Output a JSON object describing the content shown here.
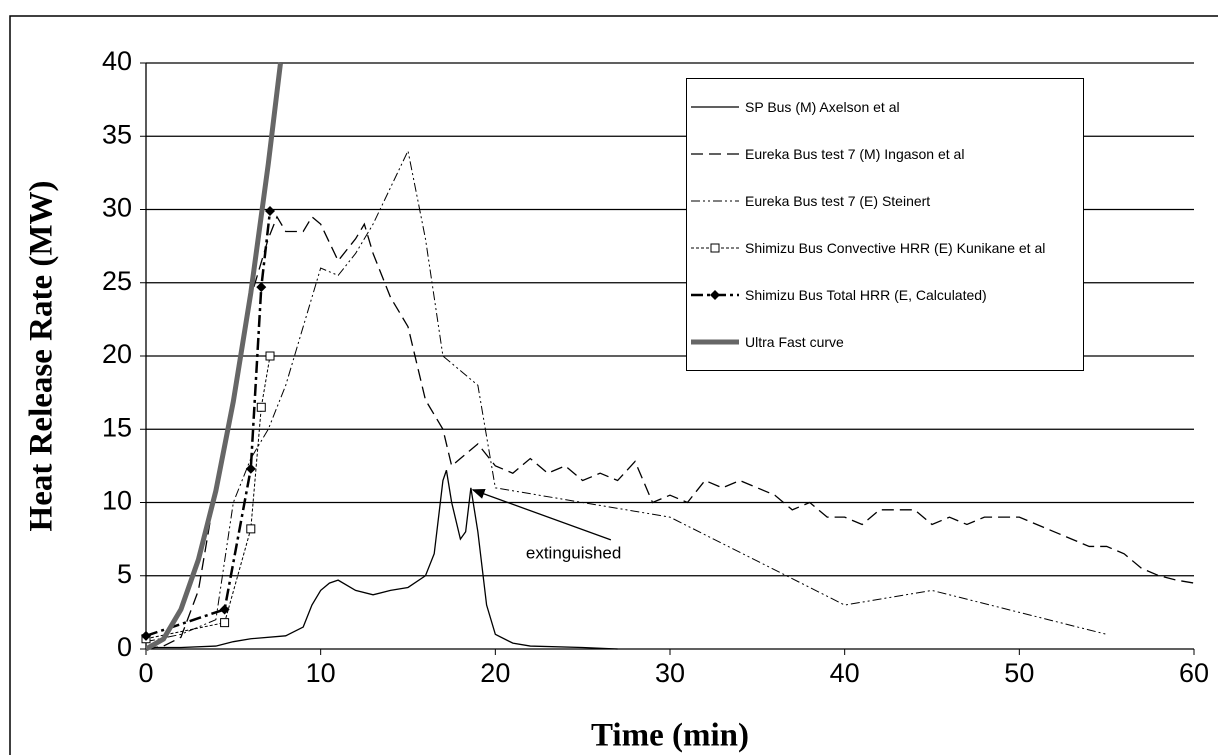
{
  "chart_data": {
    "type": "line",
    "xlabel": "Time (min)",
    "ylabel": "Heat Release Rate (MW)",
    "xlim": [
      0,
      60
    ],
    "xticks": [
      0,
      10,
      20,
      30,
      40,
      50,
      60
    ],
    "ylim": [
      0,
      40
    ],
    "yticks": [
      0,
      5,
      10,
      15,
      20,
      25,
      30,
      35,
      40
    ],
    "grid": true,
    "legend": "upper right",
    "annotation": {
      "text": "extinguished",
      "x": 18.6,
      "y": 11
    },
    "series": [
      {
        "name": "SP Bus (M) Axelson et al",
        "color": "#000000",
        "line_style": "solid",
        "width": 1.3,
        "marker": "none",
        "x": [
          0,
          2,
          4,
          5,
          6,
          8,
          9,
          9.5,
          10,
          10.5,
          11,
          12,
          13,
          14,
          15,
          16,
          16.5,
          17,
          17.2,
          17.5,
          18,
          18.3,
          18.6,
          19,
          19.5,
          20,
          21,
          22,
          25,
          27
        ],
        "values": [
          0.1,
          0.1,
          0.2,
          0.5,
          0.7,
          0.9,
          1.5,
          3,
          4,
          4.5,
          4.7,
          4,
          3.7,
          4,
          4.2,
          5,
          6.5,
          11.5,
          12.2,
          10,
          7.5,
          8,
          11,
          8,
          3,
          1,
          0.4,
          0.2,
          0.1,
          0
        ]
      },
      {
        "name": "Eureka Bus test 7 (M) Ingason et al",
        "color": "#000000",
        "line_style": "dashed",
        "width": 1.3,
        "marker": "none",
        "x": [
          0,
          1,
          2,
          3,
          4,
          5,
          6,
          6.5,
          7,
          7.5,
          8,
          9,
          9.5,
          10,
          11,
          12,
          12.5,
          13,
          14,
          15,
          16,
          17,
          17.5,
          18,
          19,
          20,
          21,
          22,
          23,
          24,
          25,
          26,
          27,
          28,
          29,
          30,
          31,
          32,
          33,
          34,
          35,
          36,
          37,
          38,
          39,
          40,
          41,
          42,
          43,
          44,
          45,
          46,
          47,
          48,
          49,
          50,
          51,
          52,
          53,
          54,
          55,
          56,
          57,
          58,
          59,
          60
        ],
        "values": [
          0,
          0.2,
          0.8,
          4,
          11,
          17,
          24,
          26,
          28,
          29.5,
          28.5,
          28.5,
          29.5,
          29,
          26.5,
          28,
          29,
          27,
          24,
          22,
          17,
          15,
          12.5,
          13,
          14,
          12.5,
          12,
          13,
          12,
          12.5,
          11.5,
          12,
          11.5,
          12.8,
          10,
          10.5,
          10,
          11.5,
          11,
          11.5,
          11,
          10.5,
          9.5,
          10,
          9,
          9,
          8.5,
          9.5,
          9.5,
          9.5,
          8.5,
          9,
          8.5,
          9,
          9,
          9,
          8.5,
          8,
          7.5,
          7,
          7,
          6.5,
          5.5,
          5,
          4.7,
          4.5
        ]
      },
      {
        "name": "Eureka Bus test 7 (E) Steinert",
        "color": "#000000",
        "line_style": "dash-dot-dot",
        "width": 1,
        "marker": "none",
        "x": [
          0,
          2,
          4,
          5,
          6,
          7,
          8,
          9,
          10,
          11,
          12,
          13,
          14,
          15,
          16,
          17,
          18,
          19,
          20,
          30,
          35,
          40,
          45,
          50,
          55
        ],
        "values": [
          0.5,
          1,
          2,
          10,
          13,
          15,
          18,
          22,
          26,
          25.5,
          27,
          29,
          31.5,
          34,
          28,
          20,
          19,
          18,
          11,
          9,
          6,
          3,
          4,
          2.5,
          1
        ]
      },
      {
        "name": "Shimizu Bus Convective HRR (E) Kunikane et al",
        "color": "#000000",
        "line_style": "dotted",
        "width": 1,
        "marker": "square-open",
        "x": [
          0,
          4.5,
          6,
          6.6,
          7.1
        ],
        "values": [
          0.7,
          1.8,
          8.2,
          16.5,
          20
        ]
      },
      {
        "name": "Shimizu Bus Total HRR (E, Calculated)",
        "color": "#000000",
        "line_style": "dash-dot",
        "width": 2.5,
        "marker": "diamond",
        "x": [
          0,
          4.5,
          6,
          6.6,
          7.1
        ],
        "values": [
          0.9,
          2.7,
          12.3,
          24.7,
          29.9
        ]
      },
      {
        "name": "Ultra Fast curve",
        "color": "#666666",
        "line_style": "solid",
        "width": 5,
        "marker": "none",
        "x": [
          0,
          1,
          2,
          3,
          4,
          5,
          6,
          7,
          7.7
        ],
        "values": [
          0,
          0.68,
          2.7,
          6.1,
          10.8,
          16.9,
          24.3,
          33.1,
          40
        ]
      }
    ]
  }
}
